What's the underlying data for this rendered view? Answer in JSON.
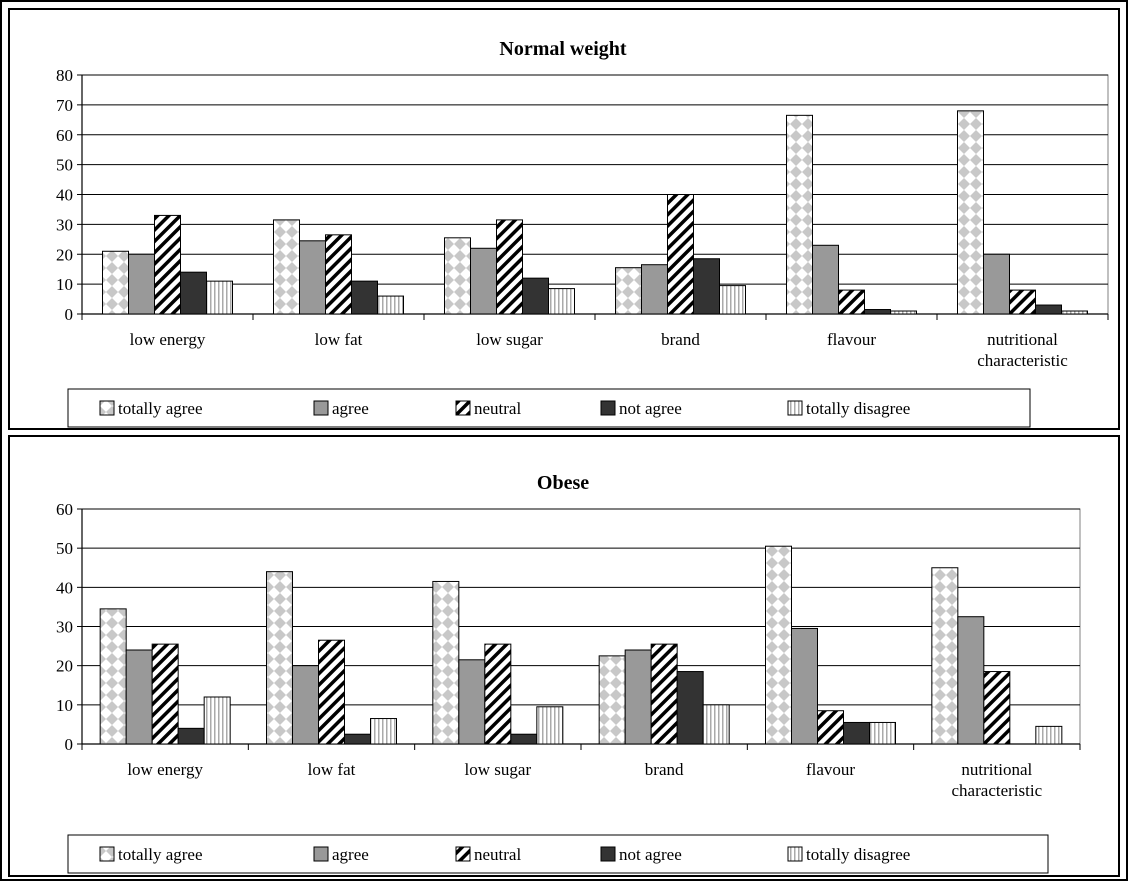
{
  "chart_data": [
    {
      "type": "bar",
      "title": "Normal weight",
      "categories": [
        "low energy",
        "low fat",
        "low sugar",
        "brand",
        "flavour",
        "nutritional characteristic"
      ],
      "ylim": [
        0,
        80
      ],
      "yticks": [
        0,
        10,
        20,
        30,
        40,
        50,
        60,
        70,
        80
      ],
      "grid": true,
      "legend_position": "bottom",
      "series": [
        {
          "name": "totally agree",
          "values": [
            21,
            31.5,
            25.5,
            15.5,
            66.5,
            68
          ]
        },
        {
          "name": "agree",
          "values": [
            20,
            24.5,
            22,
            16.5,
            23,
            20
          ]
        },
        {
          "name": "neutral",
          "values": [
            33,
            26.5,
            31.5,
            40,
            8,
            8
          ]
        },
        {
          "name": "not agree",
          "values": [
            14,
            11,
            12,
            18.5,
            1.5,
            3
          ]
        },
        {
          "name": "totally disagree",
          "values": [
            11,
            6,
            8.5,
            9.5,
            1,
            1
          ]
        }
      ]
    },
    {
      "type": "bar",
      "title": "Obese",
      "categories": [
        "low energy",
        "low fat",
        "low sugar",
        "brand",
        "flavour",
        "nutritional characteristic"
      ],
      "ylim": [
        0,
        60
      ],
      "yticks": [
        0,
        10,
        20,
        30,
        40,
        50,
        60
      ],
      "grid": true,
      "legend_position": "bottom",
      "series": [
        {
          "name": "totally agree",
          "values": [
            34.5,
            44,
            41.5,
            22.5,
            50.5,
            45
          ]
        },
        {
          "name": "agree",
          "values": [
            24,
            20,
            21.5,
            24,
            29.5,
            32.5
          ]
        },
        {
          "name": "neutral",
          "values": [
            25.5,
            26.5,
            25.5,
            25.5,
            8.5,
            18.5
          ]
        },
        {
          "name": "not agree",
          "values": [
            4,
            2.5,
            2.5,
            18.5,
            5.5,
            0
          ]
        },
        {
          "name": "totally disagree",
          "values": [
            12,
            6.5,
            9.5,
            10,
            5.5,
            4.5
          ]
        }
      ]
    }
  ],
  "series_styles": [
    "totally-agree",
    "agree",
    "neutral",
    "not-agree",
    "totally-disagree"
  ],
  "colors": {
    "agree": "#999999",
    "not_agree": "#333333",
    "totally_agree_pattern": "#c8c8c8",
    "totally_disagree_pattern": "#aaaaaa",
    "grid": "#000000"
  }
}
